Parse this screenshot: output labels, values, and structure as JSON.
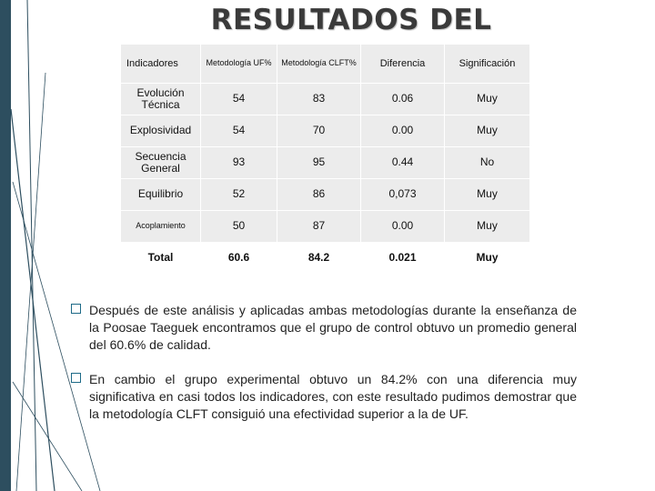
{
  "slide": {
    "title": "RESULTADOS DEL",
    "table": {
      "headers": [
        "Indicadores",
        "Metodología UF%",
        "Metodología CLFT%",
        "Diferencia",
        "Significación"
      ],
      "rows": [
        [
          "Evolución Técnica",
          "54",
          "83",
          "0.06",
          "Muy"
        ],
        [
          "Explosividad",
          "54",
          "70",
          "0.00",
          "Muy"
        ],
        [
          "Secuencia General",
          "93",
          "95",
          "0.44",
          "No"
        ],
        [
          "Equilibrio",
          "52",
          "86",
          "0,073",
          "Muy"
        ],
        [
          "Acoplamiento",
          "50",
          "87",
          "0.00",
          "Muy"
        ]
      ],
      "total": [
        "Total",
        "60.6",
        "84.2",
        "0.021",
        "Muy"
      ]
    },
    "bullets": [
      "Después de este análisis y aplicadas ambas metodologías durante la enseñanza de la Poosae Taeguek encontramos que el grupo de control obtuvo un promedio general del 60.6% de calidad.",
      "En cambio el grupo experimental obtuvo un 84.2% con una diferencia muy significativa en casi todos los indicadores, con este resultado pudimos demostrar que la metodología CLFT consiguió una efectividad superior a la de UF."
    ]
  }
}
